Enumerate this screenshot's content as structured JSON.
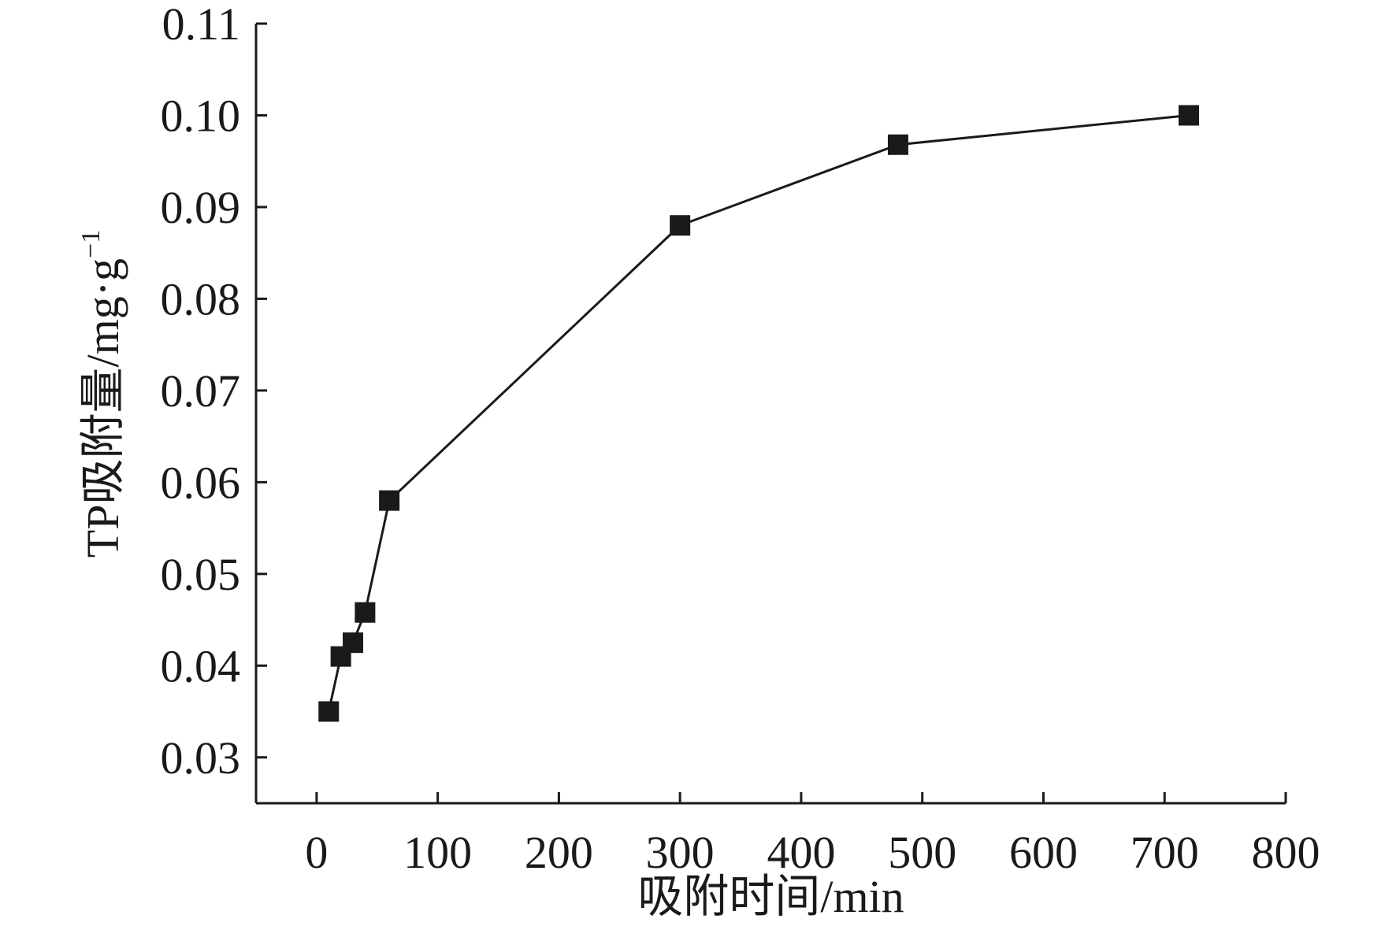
{
  "chart_data": {
    "type": "line",
    "xlabel": "吸附时间/min",
    "ylabel_main": "TP吸附量/mg·g",
    "ylabel_sup": "−1",
    "xlim": [
      -50,
      800
    ],
    "ylim": [
      0.025,
      0.11
    ],
    "xticks": [
      0,
      100,
      200,
      300,
      400,
      500,
      600,
      700,
      800
    ],
    "xtick_labels": [
      "0",
      "100",
      "200",
      "300",
      "400",
      "500",
      "600",
      "700",
      "800"
    ],
    "yticks": [
      0.03,
      0.04,
      0.05,
      0.06,
      0.07,
      0.08,
      0.09,
      0.1,
      0.11
    ],
    "ytick_labels": [
      "0.03",
      "0.04",
      "0.05",
      "0.06",
      "0.07",
      "0.08",
      "0.09",
      "0.10",
      "0.11"
    ],
    "grid": false,
    "series": [
      {
        "marker": "square",
        "color": "#1a1a1a",
        "x": [
          10,
          20,
          30,
          40,
          60,
          300,
          480,
          720
        ],
        "y": [
          0.035,
          0.041,
          0.0425,
          0.0458,
          0.058,
          0.088,
          0.0968,
          0.1
        ]
      }
    ]
  }
}
